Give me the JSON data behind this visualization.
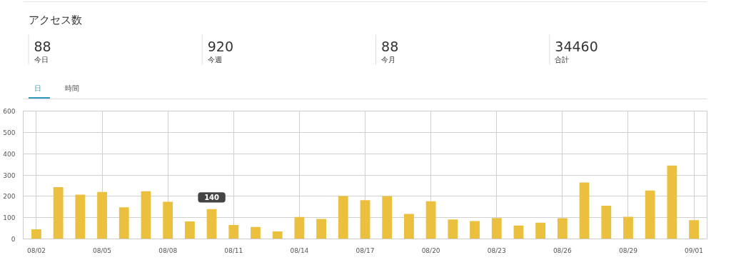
{
  "chart_data": [
    {
      "type": "other",
      "title": "アクセス数",
      "annotations": [
        "88",
        "今日",
        "920",
        "今週",
        "88",
        "今月",
        "34460",
        "合計",
        "日",
        "時間"
      ]
    },
    {
      "type": "bar",
      "categories": [
        "08/02",
        null,
        null,
        "08/05",
        null,
        null,
        "08/08",
        null,
        null,
        "08/11",
        null,
        null,
        "08/14",
        null,
        null,
        "08/17",
        null,
        null,
        "08/20",
        null,
        null,
        "08/23",
        null,
        null,
        "08/26",
        null,
        null,
        "08/29",
        null,
        null,
        "09/01"
      ],
      "values": [
        45,
        243,
        208,
        220,
        148,
        224,
        174,
        82,
        140,
        65,
        56,
        35,
        103,
        94,
        201,
        182,
        200,
        117,
        177,
        91,
        84,
        98,
        63,
        76,
        97,
        265,
        156,
        104,
        227,
        344,
        88
      ],
      "color": "#ebc03f",
      "ylim": [
        0,
        600
      ],
      "yticks": [
        0,
        100,
        200,
        300,
        400,
        500,
        600
      ],
      "grid": true,
      "annotations": [
        {
          "text": "140",
          "y": 140
        }
      ]
    }
  ]
}
